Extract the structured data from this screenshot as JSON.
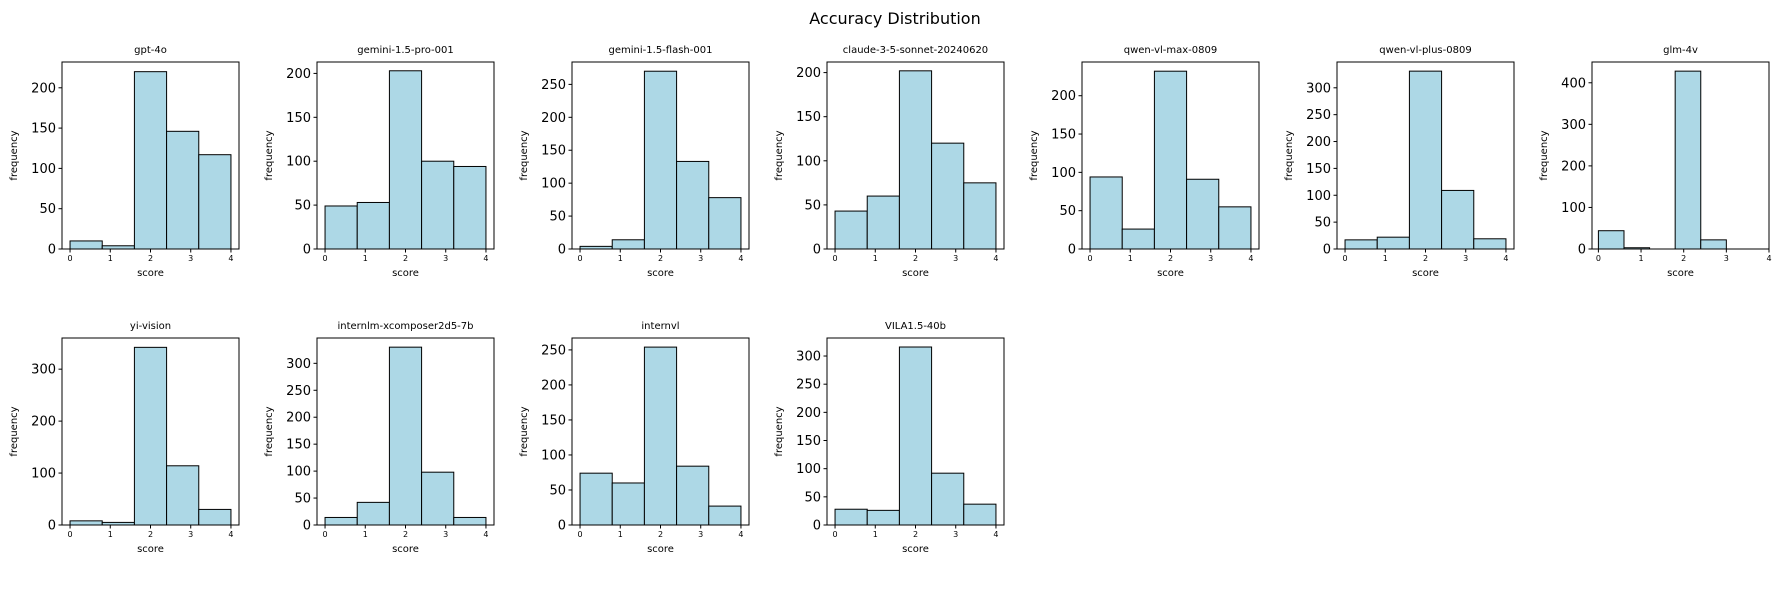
{
  "figure": {
    "title": "Accuracy Distribution",
    "colors": {
      "bar_fill": "#add8e6",
      "bar_edge": "#000000"
    }
  },
  "chart_data": [
    {
      "type": "bar",
      "title": "gpt-4o",
      "xlabel": "score",
      "ylabel": "frequency",
      "bin_edges": [
        0,
        0.8,
        1.6,
        2.4,
        3.2,
        4.0
      ],
      "values": [
        10,
        4,
        220,
        146,
        117
      ],
      "xlim": [
        -0.2,
        4.2
      ],
      "ylim": [
        0,
        232
      ],
      "xticks": [
        "0",
        "1",
        "2",
        "3",
        "4"
      ],
      "yticks": [
        0,
        50,
        100,
        150,
        200
      ]
    },
    {
      "type": "bar",
      "title": "gemini-1.5-pro-001",
      "xlabel": "score",
      "ylabel": "frequency",
      "bin_edges": [
        0,
        0.8,
        1.6,
        2.4,
        3.2,
        4.0
      ],
      "values": [
        49,
        53,
        203,
        100,
        94
      ],
      "xlim": [
        -0.2,
        4.2
      ],
      "ylim": [
        0,
        213
      ],
      "xticks": [
        "0",
        "1",
        "2",
        "3",
        "4"
      ],
      "yticks": [
        0,
        50,
        100,
        150,
        200
      ]
    },
    {
      "type": "bar",
      "title": "gemini-1.5-flash-001",
      "xlabel": "score",
      "ylabel": "frequency",
      "bin_edges": [
        0,
        0.8,
        1.6,
        2.4,
        3.2,
        4.0
      ],
      "values": [
        4,
        14,
        270,
        133,
        78
      ],
      "xlim": [
        -0.2,
        4.2
      ],
      "ylim": [
        0,
        284
      ],
      "xticks": [
        "0",
        "1",
        "2",
        "3",
        "4"
      ],
      "yticks": [
        0,
        50,
        100,
        150,
        200,
        250
      ]
    },
    {
      "type": "bar",
      "title": "claude-3-5-sonnet-20240620",
      "xlabel": "score",
      "ylabel": "frequency",
      "bin_edges": [
        0,
        0.8,
        1.6,
        2.4,
        3.2,
        4.0
      ],
      "values": [
        43,
        60,
        202,
        120,
        75
      ],
      "xlim": [
        -0.2,
        4.2
      ],
      "ylim": [
        0,
        212
      ],
      "xticks": [
        "0",
        "1",
        "2",
        "3",
        "4"
      ],
      "yticks": [
        0,
        50,
        100,
        150,
        200
      ]
    },
    {
      "type": "bar",
      "title": "qwen-vl-max-0809",
      "xlabel": "score",
      "ylabel": "frequency",
      "bin_edges": [
        0,
        0.8,
        1.6,
        2.4,
        3.2,
        4.0
      ],
      "values": [
        94,
        26,
        232,
        91,
        55
      ],
      "xlim": [
        -0.2,
        4.2
      ],
      "ylim": [
        0,
        244
      ],
      "xticks": [
        "0",
        "1",
        "2",
        "3",
        "4"
      ],
      "yticks": [
        0,
        50,
        100,
        150,
        200
      ]
    },
    {
      "type": "bar",
      "title": "qwen-vl-plus-0809",
      "xlabel": "score",
      "ylabel": "frequency",
      "bin_edges": [
        0,
        0.8,
        1.6,
        2.4,
        3.2,
        4.0
      ],
      "values": [
        17,
        22,
        331,
        109,
        19
      ],
      "xlim": [
        -0.2,
        4.2
      ],
      "ylim": [
        0,
        348
      ],
      "xticks": [
        "0",
        "1",
        "2",
        "3",
        "4"
      ],
      "yticks": [
        0,
        50,
        100,
        150,
        200,
        250,
        300
      ]
    },
    {
      "type": "bar",
      "title": "glm-4v",
      "xlabel": "score",
      "ylabel": "frequency",
      "bin_edges": [
        0,
        0.6,
        1.2,
        1.8,
        2.4,
        3.0
      ],
      "values": [
        44,
        3,
        0,
        428,
        22
      ],
      "xlim": [
        -0.15,
        4.0
      ],
      "ylim": [
        0,
        450
      ],
      "xticks": [
        "0",
        "1",
        "2",
        "3",
        "4"
      ],
      "yticks": [
        0,
        100,
        200,
        300,
        400
      ]
    },
    {
      "type": "bar",
      "title": "yi-vision",
      "xlabel": "score",
      "ylabel": "frequency",
      "bin_edges": [
        0,
        0.8,
        1.6,
        2.4,
        3.2,
        4.0
      ],
      "values": [
        8,
        5,
        342,
        114,
        30
      ],
      "xlim": [
        -0.2,
        4.2
      ],
      "ylim": [
        0,
        360
      ],
      "xticks": [
        "0",
        "1",
        "2",
        "3",
        "4"
      ],
      "yticks": [
        0,
        100,
        200,
        300
      ]
    },
    {
      "type": "bar",
      "title": "internlm-xcomposer2d5-7b",
      "xlabel": "score",
      "ylabel": "frequency",
      "bin_edges": [
        0,
        0.8,
        1.6,
        2.4,
        3.2,
        4.0
      ],
      "values": [
        14,
        42,
        330,
        98,
        14
      ],
      "xlim": [
        -0.2,
        4.2
      ],
      "ylim": [
        0,
        347
      ],
      "xticks": [
        "0",
        "1",
        "2",
        "3",
        "4"
      ],
      "yticks": [
        0,
        50,
        100,
        150,
        200,
        250,
        300
      ]
    },
    {
      "type": "bar",
      "title": "internvl",
      "xlabel": "score",
      "ylabel": "frequency",
      "bin_edges": [
        0,
        0.8,
        1.6,
        2.4,
        3.2,
        4.0
      ],
      "values": [
        74,
        60,
        254,
        84,
        27
      ],
      "xlim": [
        -0.2,
        4.2
      ],
      "ylim": [
        0,
        267
      ],
      "xticks": [
        "0",
        "1",
        "2",
        "3",
        "4"
      ],
      "yticks": [
        0,
        50,
        100,
        150,
        200,
        250
      ]
    },
    {
      "type": "bar",
      "title": "VILA1.5-40b",
      "xlabel": "score",
      "ylabel": "frequency",
      "bin_edges": [
        0,
        0.8,
        1.6,
        2.4,
        3.2,
        4.0
      ],
      "values": [
        28,
        26,
        316,
        92,
        37
      ],
      "xlim": [
        -0.2,
        4.2
      ],
      "ylim": [
        0,
        332
      ],
      "xticks": [
        "0",
        "1",
        "2",
        "3",
        "4"
      ],
      "yticks": [
        0,
        50,
        100,
        150,
        200,
        250,
        300
      ]
    }
  ]
}
